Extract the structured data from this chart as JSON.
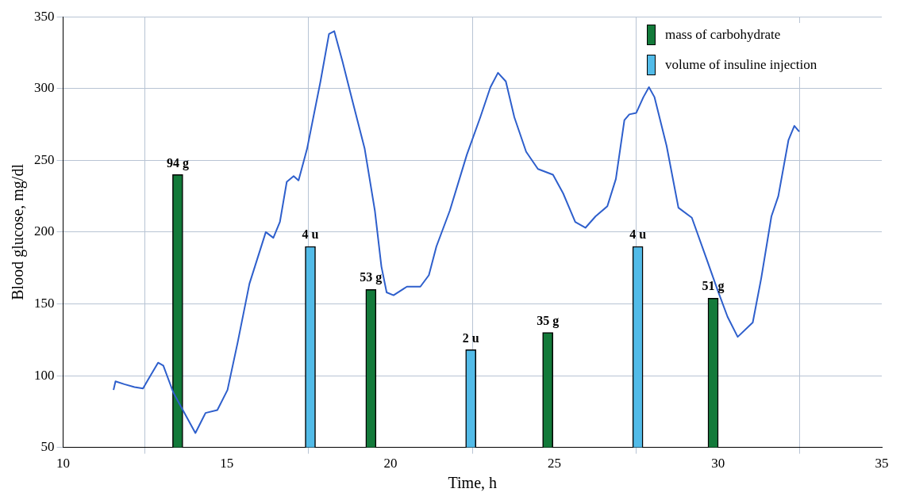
{
  "chart_data": {
    "type": "line",
    "xlabel": "Time, h",
    "ylabel": "Blood glucose, mg/dl",
    "xlim": [
      10,
      35
    ],
    "xticks": [
      10,
      15,
      20,
      25,
      30,
      35
    ],
    "ylim": [
      50,
      350
    ],
    "yticks": [
      50,
      100,
      150,
      200,
      250,
      300,
      350
    ],
    "grid": true,
    "legend": "top right",
    "series": [
      {
        "color": "#2e5fcc",
        "x": [
          11.54,
          11.6,
          11.87,
          12.18,
          12.44,
          12.59,
          12.9,
          13.06,
          13.37,
          13.68,
          14.04,
          14.35,
          14.71,
          15.02,
          15.33,
          15.69,
          16.19,
          16.42,
          16.62,
          16.83,
          17.04,
          17.19,
          17.45,
          17.86,
          18.12,
          18.28,
          18.53,
          18.84,
          19.21,
          19.52,
          19.72,
          19.88,
          20.09,
          20.5,
          20.91,
          21.17,
          21.4,
          21.81,
          22.33,
          22.74,
          23.05,
          23.28,
          23.52,
          23.78,
          24.14,
          24.5,
          24.96,
          25.27,
          25.64,
          25.95,
          26.26,
          26.62,
          26.88,
          27.14,
          27.29,
          27.5,
          27.72,
          27.89,
          28.06,
          28.43,
          28.79,
          29.2,
          29.67,
          29.98,
          30.29,
          30.6,
          31.06,
          31.32,
          31.63,
          31.84,
          32.15,
          32.33,
          32.48
        ],
        "values": [
          90,
          96,
          94,
          92,
          91,
          97,
          109,
          107,
          88,
          75,
          60,
          74,
          76,
          90,
          123,
          164,
          200,
          196,
          207,
          235,
          239,
          236,
          258,
          305,
          338,
          340,
          319,
          291,
          258,
          215,
          176,
          158,
          156,
          162,
          162,
          170,
          190,
          215,
          254,
          280,
          301,
          311,
          305,
          280,
          256,
          244,
          240,
          227,
          207,
          203,
          211,
          218,
          237,
          278,
          282,
          283,
          294,
          301,
          294,
          260,
          217,
          210,
          180,
          160,
          141,
          127,
          137,
          168,
          211,
          225,
          264,
          274,
          270
        ]
      },
      {
        "type": "bar",
        "name": "mass of carbohydrate",
        "color": "#137a3a",
        "x": [
          13.5,
          19.4,
          24.8,
          29.85
        ],
        "values": [
          240,
          160,
          130,
          154
        ]
      },
      {
        "type": "bar",
        "name": "volume of insuline injection",
        "color": "#52bbe8",
        "x": [
          17.55,
          22.45,
          27.55
        ],
        "values": [
          190,
          118,
          190
        ]
      }
    ],
    "annotations": [
      {
        "text": "94 g",
        "x": 13.5,
        "y": 240
      },
      {
        "text": "4 u",
        "x": 17.55,
        "y": 190
      },
      {
        "text": "53 g",
        "x": 19.4,
        "y": 160
      },
      {
        "text": "2 u",
        "x": 22.45,
        "y": 118
      },
      {
        "text": "35 g",
        "x": 24.8,
        "y": 130
      },
      {
        "text": "4 u",
        "x": 27.55,
        "y": 190
      },
      {
        "text": "51 g",
        "x": 29.85,
        "y": 154
      }
    ]
  }
}
